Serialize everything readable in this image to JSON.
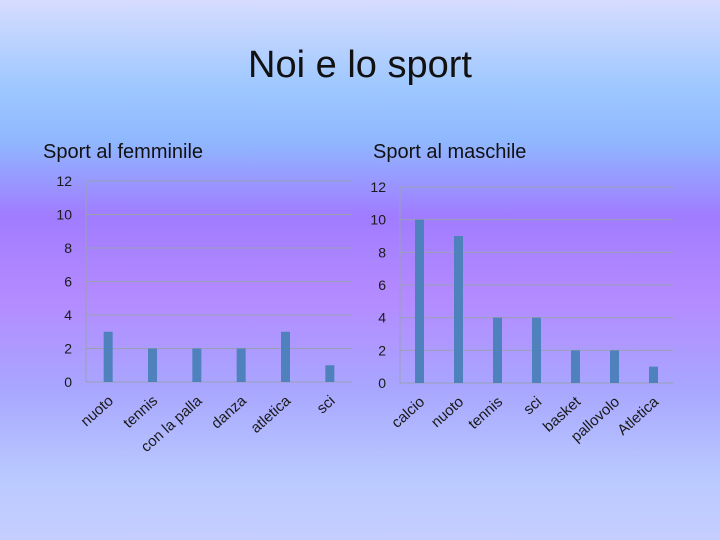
{
  "title": "Noi e lo sport",
  "colors": {
    "bar": "#4f81bd",
    "grid": "#9aa0b4"
  },
  "chart_data": [
    {
      "type": "bar",
      "title": "Sport al femminile",
      "categories": [
        "nuoto",
        "tennis",
        "con la palla",
        "danza",
        "atletica",
        "sci"
      ],
      "values": [
        3,
        2,
        2,
        2,
        3,
        1
      ],
      "ylim": [
        0,
        12
      ],
      "yticks": [
        "0",
        "2",
        "4",
        "6",
        "8",
        "10",
        "12"
      ],
      "grid": true
    },
    {
      "type": "bar",
      "title": "Sport al maschile",
      "categories": [
        "calcio",
        "nuoto",
        "tennis",
        "sci",
        "basket",
        "pallovolo",
        "Atletica"
      ],
      "values": [
        10,
        9,
        4,
        4,
        2,
        2,
        1
      ],
      "ylim": [
        0,
        12
      ],
      "yticks": [
        "0",
        "2",
        "4",
        "6",
        "8",
        "10",
        "12"
      ],
      "grid": true
    }
  ]
}
